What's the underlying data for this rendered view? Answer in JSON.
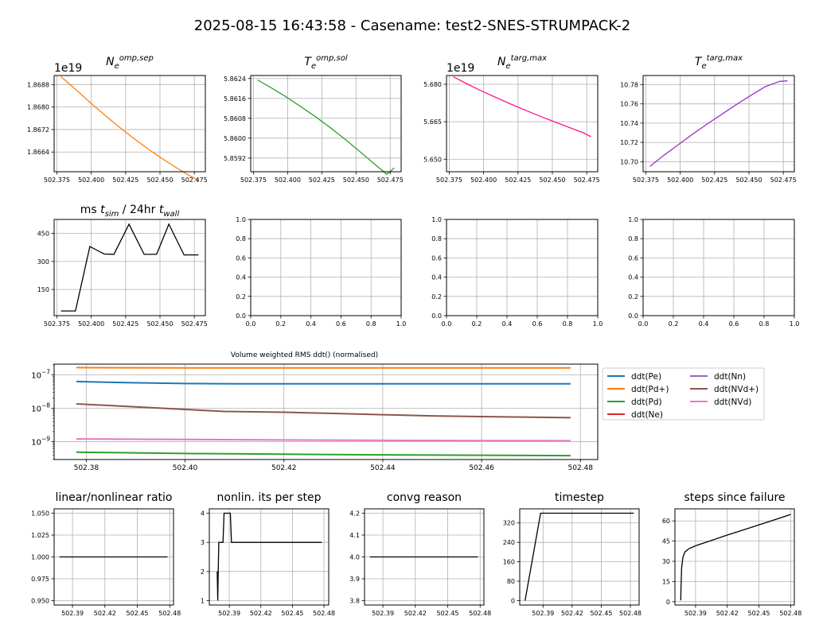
{
  "figure": {
    "suptitle": "2025-08-15 16:43:58 - Casename: test2-SNES-STRUMPACK-2"
  },
  "chart_data": [
    {
      "id": "ne_omp_sep",
      "type": "line",
      "title": "N_e^{omp,sep}",
      "offset_label": "1e19",
      "x": [
        502.378,
        502.3885,
        502.399,
        502.4095,
        502.42,
        502.4305,
        502.441,
        502.4515,
        502.462,
        502.4725,
        502.478
      ],
      "y": [
        1.86908,
        1.86863,
        1.86817,
        1.86773,
        1.8673,
        1.8669,
        1.86652,
        1.86617,
        1.86584,
        1.86553,
        1.8654
      ],
      "xlim": [
        502.373,
        502.483
      ],
      "ylim": [
        1.8657,
        1.86912
      ],
      "xticks": [
        "502.375",
        "502.400",
        "502.425",
        "502.450",
        "502.475"
      ],
      "xtick_values": [
        502.375,
        502.4,
        502.425,
        502.45,
        502.475
      ],
      "yticks": [
        "1.8664",
        "1.8672",
        "1.8680",
        "1.8688"
      ],
      "ytick_values": [
        1.8664,
        1.8672,
        1.868,
        1.8688
      ],
      "color": "#ff7f0e"
    },
    {
      "id": "te_omp_sol",
      "type": "line",
      "title": "T_e^{omp,sol}",
      "x": [
        502.378,
        502.3885,
        502.399,
        502.4095,
        502.42,
        502.4305,
        502.441,
        502.4515,
        502.462,
        502.4725,
        502.478
      ],
      "y": [
        5.86234,
        5.86201,
        5.86166,
        5.86127,
        5.86088,
        5.86045,
        5.86,
        5.85952,
        5.85903,
        5.85855,
        5.8588
      ],
      "xlim": [
        502.373,
        502.483
      ],
      "ylim": [
        5.85865,
        5.86252
      ],
      "xticks": [
        "502.375",
        "502.400",
        "502.425",
        "502.450",
        "502.475"
      ],
      "xtick_values": [
        502.375,
        502.4,
        502.425,
        502.45,
        502.475
      ],
      "yticks": [
        "5.8592",
        "5.8600",
        "5.8608",
        "5.8616",
        "5.8624"
      ],
      "ytick_values": [
        5.8592,
        5.86,
        5.8608,
        5.8616,
        5.8624
      ],
      "color": "#2ca02c"
    },
    {
      "id": "ne_targ_max",
      "type": "line",
      "title": "N_e^{targ,max}",
      "offset_label": "1e19",
      "x": [
        502.378,
        502.3885,
        502.399,
        502.4095,
        502.42,
        502.4305,
        502.441,
        502.4515,
        502.462,
        502.4725,
        502.478
      ],
      "y": [
        5.683,
        5.68,
        5.6772,
        5.6746,
        5.672,
        5.6696,
        5.6672,
        5.665,
        5.6628,
        5.6606,
        5.659
      ],
      "xlim": [
        502.373,
        502.483
      ],
      "ylim": [
        5.645,
        5.6835
      ],
      "xticks": [
        "502.375",
        "502.400",
        "502.425",
        "502.450",
        "502.475"
      ],
      "xtick_values": [
        502.375,
        502.4,
        502.425,
        502.45,
        502.475
      ],
      "yticks": [
        "5.650",
        "5.665",
        "5.680"
      ],
      "ytick_values": [
        5.65,
        5.665,
        5.68
      ],
      "color": "#ff1493"
    },
    {
      "id": "te_targ_max",
      "type": "line",
      "title": "T_e^{targ,max}",
      "x": [
        502.378,
        502.3885,
        502.399,
        502.4095,
        502.42,
        502.4305,
        502.441,
        502.4515,
        502.462,
        502.4725,
        502.478
      ],
      "y": [
        10.695,
        10.707,
        10.718,
        10.729,
        10.7395,
        10.7495,
        10.7595,
        10.769,
        10.778,
        10.7835,
        10.784
      ],
      "xlim": [
        502.373,
        502.483
      ],
      "ylim": [
        10.6895,
        10.7895
      ],
      "xticks": [
        "502.375",
        "502.400",
        "502.425",
        "502.450",
        "502.475"
      ],
      "xtick_values": [
        502.375,
        502.4,
        502.425,
        502.45,
        502.475
      ],
      "yticks": [
        "10.70",
        "10.72",
        "10.74",
        "10.76",
        "10.78"
      ],
      "ytick_values": [
        10.7,
        10.72,
        10.74,
        10.76,
        10.78
      ],
      "color": "#9932cc"
    },
    {
      "id": "ms_tsim",
      "type": "line",
      "title": "ms t_sim / 24hr t_wall",
      "x": [
        502.378,
        502.3885,
        502.399,
        502.4095,
        502.4165,
        502.4275,
        502.4385,
        502.4475,
        502.4565,
        502.4675,
        502.478
      ],
      "y": [
        35,
        35,
        380,
        340,
        338,
        500,
        338,
        338,
        500,
        335,
        335
      ],
      "xlim": [
        502.373,
        502.483
      ],
      "ylim": [
        10,
        525
      ],
      "xticks": [
        "502.375",
        "502.400",
        "502.425",
        "502.450",
        "502.475"
      ],
      "xtick_values": [
        502.375,
        502.4,
        502.425,
        502.45,
        502.475
      ],
      "yticks": [
        "150",
        "300",
        "450"
      ],
      "ytick_values": [
        150,
        300,
        450
      ],
      "color": "#000000"
    },
    {
      "id": "empty_1",
      "type": "line",
      "x": [],
      "y": [],
      "xlim": [
        0,
        1
      ],
      "ylim": [
        0,
        1
      ],
      "xticks": [
        "0.0",
        "0.2",
        "0.4",
        "0.6",
        "0.8",
        "1.0"
      ],
      "xtick_values": [
        0,
        0.2,
        0.4,
        0.6,
        0.8,
        1.0
      ],
      "yticks": [
        "0.0",
        "0.2",
        "0.4",
        "0.6",
        "0.8",
        "1.0"
      ],
      "ytick_values": [
        0,
        0.2,
        0.4,
        0.6,
        0.8,
        1.0
      ]
    },
    {
      "id": "empty_2",
      "type": "line",
      "x": [],
      "y": [],
      "xlim": [
        0,
        1
      ],
      "ylim": [
        0,
        1
      ],
      "xticks": [
        "0.0",
        "0.2",
        "0.4",
        "0.6",
        "0.8",
        "1.0"
      ],
      "xtick_values": [
        0,
        0.2,
        0.4,
        0.6,
        0.8,
        1.0
      ],
      "yticks": [
        "0.0",
        "0.2",
        "0.4",
        "0.6",
        "0.8",
        "1.0"
      ],
      "ytick_values": [
        0,
        0.2,
        0.4,
        0.6,
        0.8,
        1.0
      ]
    },
    {
      "id": "empty_3",
      "type": "line",
      "x": [],
      "y": [],
      "xlim": [
        0,
        1
      ],
      "ylim": [
        0,
        1
      ],
      "xticks": [
        "0.0",
        "0.2",
        "0.4",
        "0.6",
        "0.8",
        "1.0"
      ],
      "xtick_values": [
        0,
        0.2,
        0.4,
        0.6,
        0.8,
        1.0
      ],
      "yticks": [
        "0.0",
        "0.2",
        "0.4",
        "0.6",
        "0.8",
        "1.0"
      ],
      "ytick_values": [
        0,
        0.2,
        0.4,
        0.6,
        0.8,
        1.0
      ]
    },
    {
      "id": "ddt",
      "type": "line",
      "log_y": true,
      "title": "Volume weighted RMS ddt() (normalised)",
      "xlim": [
        502.3735,
        502.4835
      ],
      "ylim": [
        2.9e-10,
        2.1e-07
      ],
      "xticks": [
        "502.38",
        "502.40",
        "502.42",
        "502.44",
        "502.46",
        "502.48"
      ],
      "xtick_values": [
        502.38,
        502.4,
        502.42,
        502.44,
        502.46,
        502.48
      ],
      "yticks": [
        "10^-9",
        "10^-8",
        "10^-7"
      ],
      "ytick_values": [
        1e-09,
        1e-08,
        1e-07
      ],
      "legend_placement": "right, outside",
      "series": [
        {
          "name": "ddt(Pe)",
          "color": "#1f77b4",
          "x": [
            502.378,
            502.389,
            502.4,
            502.41,
            502.42,
            502.43,
            502.44,
            502.45,
            502.46,
            502.47,
            502.478
          ],
          "y": [
            6.3e-08,
            5.8e-08,
            5.5e-08,
            5.4e-08,
            5.4e-08,
            5.4e-08,
            5.4e-08,
            5.4e-08,
            5.4e-08,
            5.4e-08,
            5.4e-08
          ]
        },
        {
          "name": "ddt(Pd+)",
          "color": "#ff7f0e",
          "x": [
            502.378,
            502.4,
            502.42,
            502.44,
            502.46,
            502.478
          ],
          "y": [
            1.65e-07,
            1.62e-07,
            1.62e-07,
            1.62e-07,
            1.62e-07,
            1.62e-07
          ]
        },
        {
          "name": "ddt(Pd)",
          "color": "#2ca02c",
          "x": [
            502.378,
            502.4,
            502.42,
            502.44,
            502.46,
            502.478
          ],
          "y": [
            4.8e-10,
            4.4e-10,
            4.2e-10,
            4e-10,
            3.9e-10,
            3.8e-10
          ]
        },
        {
          "name": "ddt(Ne)",
          "color": "#d62728",
          "x": [],
          "y": []
        },
        {
          "name": "ddt(Nn)",
          "color": "#9467bd",
          "x": [],
          "y": []
        },
        {
          "name": "ddt(NVd+)",
          "color": "#8c564b",
          "x": [
            502.378,
            502.39,
            502.4,
            502.408,
            502.42,
            502.43,
            502.44,
            502.45,
            502.46,
            502.47,
            502.478
          ],
          "y": [
            1.35e-08,
            1.1e-08,
            9.2e-09,
            8e-09,
            7.6e-09,
            7e-09,
            6.4e-09,
            5.9e-09,
            5.6e-09,
            5.4e-09,
            5.2e-09
          ]
        },
        {
          "name": "ddt(NVd)",
          "color": "#e377c2",
          "x": [
            502.378,
            502.4,
            502.42,
            502.44,
            502.46,
            502.478
          ],
          "y": [
            1.2e-09,
            1.16e-09,
            1.12e-09,
            1.09e-09,
            1.07e-09,
            1.06e-09
          ]
        }
      ]
    },
    {
      "id": "lin_ratio",
      "type": "line",
      "title": "linear/nonlinear ratio",
      "x": [
        502.378,
        502.478
      ],
      "y": [
        1.0,
        1.0
      ],
      "xlim": [
        502.373,
        502.4835
      ],
      "ylim": [
        0.945,
        1.055
      ],
      "xticks": [
        "502.39",
        "502.42",
        "502.45",
        "502.48"
      ],
      "xtick_values": [
        502.39,
        502.42,
        502.45,
        502.48
      ],
      "yticks": [
        "0.950",
        "0.975",
        "1.000",
        "1.025",
        "1.050"
      ],
      "ytick_values": [
        0.95,
        0.975,
        1.0,
        1.025,
        1.05
      ],
      "color": "#000000",
      "xtick_color": "#ff0000"
    },
    {
      "id": "nonlin_its",
      "type": "line",
      "title": "nonlin. its per step",
      "x": [
        502.3785,
        502.379,
        502.3795,
        502.38,
        502.381,
        502.384,
        502.385,
        502.386,
        502.3885,
        502.391,
        502.392,
        502.394,
        502.478
      ],
      "y": [
        2,
        1,
        2,
        3,
        3,
        3,
        4,
        4,
        4,
        4,
        3,
        3,
        3
      ],
      "xlim": [
        502.371,
        502.4845
      ],
      "ylim": [
        0.85,
        4.15
      ],
      "xticks": [
        "502.39",
        "502.42",
        "502.45",
        "502.48"
      ],
      "xtick_values": [
        502.39,
        502.42,
        502.45,
        502.48
      ],
      "yticks": [
        "1",
        "2",
        "3",
        "4"
      ],
      "ytick_values": [
        1,
        2,
        3,
        4
      ],
      "color": "#000000",
      "xtick_color": "#ff0000"
    },
    {
      "id": "convg",
      "type": "line",
      "title": "convg reason",
      "x": [
        502.378,
        502.478
      ],
      "y": [
        4.0,
        4.0
      ],
      "xlim": [
        502.373,
        502.4835
      ],
      "ylim": [
        3.78,
        4.22
      ],
      "xticks": [
        "502.39",
        "502.42",
        "502.45",
        "502.48"
      ],
      "xtick_values": [
        502.39,
        502.42,
        502.45,
        502.48
      ],
      "yticks": [
        "3.8",
        "3.9",
        "4.0",
        "4.1",
        "4.2"
      ],
      "ytick_values": [
        3.8,
        3.9,
        4.0,
        4.1,
        4.2
      ],
      "color": "#000000",
      "xtick_color": "#ff0000"
    },
    {
      "id": "timestep",
      "type": "line",
      "title": "timestep",
      "x": [
        502.3715,
        502.3875,
        502.4835
      ],
      "y": [
        0,
        360,
        360
      ],
      "xlim": [
        502.366,
        502.489
      ],
      "ylim": [
        -18,
        378
      ],
      "xticks": [
        "502.39",
        "502.42",
        "502.45",
        "502.48"
      ],
      "xtick_values": [
        502.39,
        502.42,
        502.45,
        502.48
      ],
      "yticks": [
        "0",
        "80",
        "160",
        "240",
        "320"
      ],
      "ytick_values": [
        0,
        80,
        160,
        240,
        320
      ],
      "color": "#000000",
      "xtick_color": "#ff0000"
    },
    {
      "id": "steps_fail",
      "type": "line",
      "title": "steps since failure",
      "x": [
        502.376,
        502.3762,
        502.3768,
        502.378,
        502.38,
        502.384,
        502.39,
        502.4,
        502.42,
        502.44,
        502.46,
        502.48
      ],
      "y": [
        1,
        10,
        25,
        33,
        37,
        39.5,
        41.5,
        44.2,
        49.5,
        54.5,
        59.6,
        64.8
      ],
      "xlim": [
        502.3705,
        502.4835
      ],
      "ylim": [
        -2.5,
        69
      ],
      "xticks": [
        "502.39",
        "502.42",
        "502.45",
        "502.48"
      ],
      "xtick_values": [
        502.39,
        502.42,
        502.45,
        502.48
      ],
      "yticks": [
        "0",
        "15",
        "30",
        "45",
        "60"
      ],
      "ytick_values": [
        0,
        15,
        30,
        45,
        60
      ],
      "color": "#000000",
      "xtick_color": "#ff0000"
    }
  ]
}
